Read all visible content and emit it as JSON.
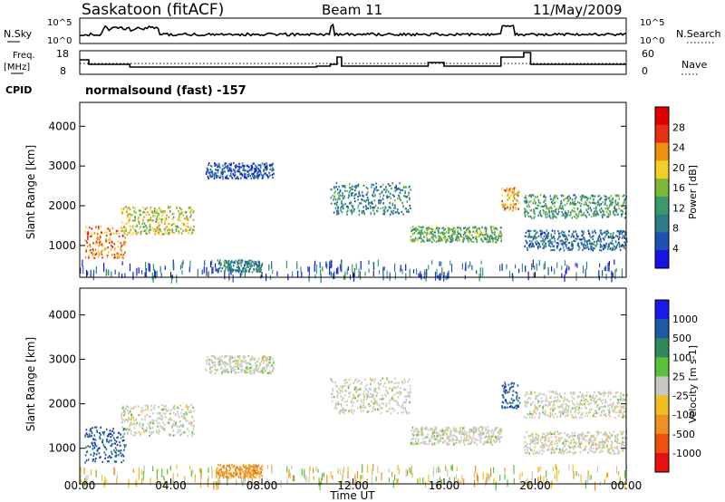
{
  "header": {
    "station": "Saskatoon (fitACF)",
    "beam": "Beam 11",
    "date": "11/May/2009"
  },
  "top_panels": {
    "nsky_label": "N.Sky",
    "nsearch_label": "N.Search",
    "freq_label": "Freq.",
    "freq_unit": "[MHz]",
    "nave_label": "Nave",
    "cpid_label": "CPID",
    "cpid_text": "normalsound (fast) -157",
    "noise_ticks_left": [
      "10^5",
      "10^0"
    ],
    "noise_ticks_right": [
      "10^5",
      "10^0"
    ],
    "freq_ticks": [
      "18",
      "8"
    ],
    "nave_ticks": [
      "60",
      "0"
    ]
  },
  "colors": {
    "power_scale": [
      "#1414e6",
      "#1e50b4",
      "#2e7a8a",
      "#3a9a6a",
      "#7ab83a",
      "#f0d020",
      "#f09010",
      "#e83010",
      "#e00000"
    ],
    "velocity_scale": [
      "#1a1ae8",
      "#1e5aa0",
      "#2e8a5a",
      "#5ac23a",
      "#c8c8c0",
      "#f0c020",
      "#f09020",
      "#f05010",
      "#e81010"
    ]
  },
  "chart_data": [
    {
      "type": "heatmap",
      "panel": "power",
      "ylabel": "Slant Range [km]",
      "yticks": [
        "1000",
        "2000",
        "3000",
        "4000"
      ],
      "ylim": [
        200,
        4600
      ],
      "xlim_hours": [
        0,
        24
      ],
      "colorbar_label": "Power [dB]",
      "colorbar_ticks": [
        "4",
        "8",
        "12",
        "16",
        "20",
        "24",
        "28"
      ],
      "bands": [
        {
          "t0": 0.2,
          "t1": 2.0,
          "r0": 700,
          "r1": 1500,
          "level": 26
        },
        {
          "t0": 1.8,
          "t1": 5.0,
          "r0": 1300,
          "r1": 2000,
          "level": 20
        },
        {
          "t0": 5.5,
          "t1": 8.5,
          "r0": 2700,
          "r1": 3100,
          "level": 8
        },
        {
          "t0": 6.0,
          "t1": 8.0,
          "r0": 350,
          "r1": 650,
          "level": 12
        },
        {
          "t0": 11.0,
          "t1": 14.5,
          "r0": 1800,
          "r1": 2600,
          "level": 12
        },
        {
          "t0": 14.5,
          "t1": 18.5,
          "r0": 1100,
          "r1": 1500,
          "level": 16
        },
        {
          "t0": 18.5,
          "t1": 19.3,
          "r0": 1900,
          "r1": 2500,
          "level": 24
        },
        {
          "t0": 19.5,
          "t1": 24.0,
          "r0": 1700,
          "r1": 2300,
          "level": 14
        },
        {
          "t0": 19.5,
          "t1": 24.0,
          "r0": 900,
          "r1": 1400,
          "level": 10
        }
      ]
    },
    {
      "type": "heatmap",
      "panel": "velocity",
      "ylabel": "Slant Range [km]",
      "yticks": [
        "1000",
        "2000",
        "3000",
        "4000"
      ],
      "ylim": [
        200,
        4600
      ],
      "xlim_hours": [
        0,
        24
      ],
      "colorbar_label": "Velocity [m s-1]",
      "colorbar_ticks": [
        "1000",
        "500",
        "100",
        "25",
        "-25",
        "-100",
        "-500",
        "-1000"
      ],
      "xticks": [
        "00:00",
        "04:00",
        "08:00",
        "12:00",
        "16:00",
        "20:00",
        "00:00"
      ],
      "xlabel": "Time UT",
      "bands": [
        {
          "t0": 0.2,
          "t1": 2.0,
          "r0": 700,
          "r1": 1500,
          "level": 400
        },
        {
          "t0": 1.8,
          "t1": 5.0,
          "r0": 1300,
          "r1": 2000,
          "level": 0
        },
        {
          "t0": 5.5,
          "t1": 8.5,
          "r0": 2700,
          "r1": 3100,
          "level": 0
        },
        {
          "t0": 6.0,
          "t1": 8.0,
          "r0": 350,
          "r1": 650,
          "level": -80
        },
        {
          "t0": 11.0,
          "t1": 14.5,
          "r0": 1800,
          "r1": 2600,
          "level": 0
        },
        {
          "t0": 14.5,
          "t1": 18.5,
          "r0": 1100,
          "r1": 1500,
          "level": 0
        },
        {
          "t0": 18.5,
          "t1": 19.3,
          "r0": 1900,
          "r1": 2500,
          "level": 300
        },
        {
          "t0": 19.5,
          "t1": 24.0,
          "r0": 1700,
          "r1": 2300,
          "level": 0
        },
        {
          "t0": 19.5,
          "t1": 24.0,
          "r0": 900,
          "r1": 1400,
          "level": 0
        }
      ]
    }
  ]
}
